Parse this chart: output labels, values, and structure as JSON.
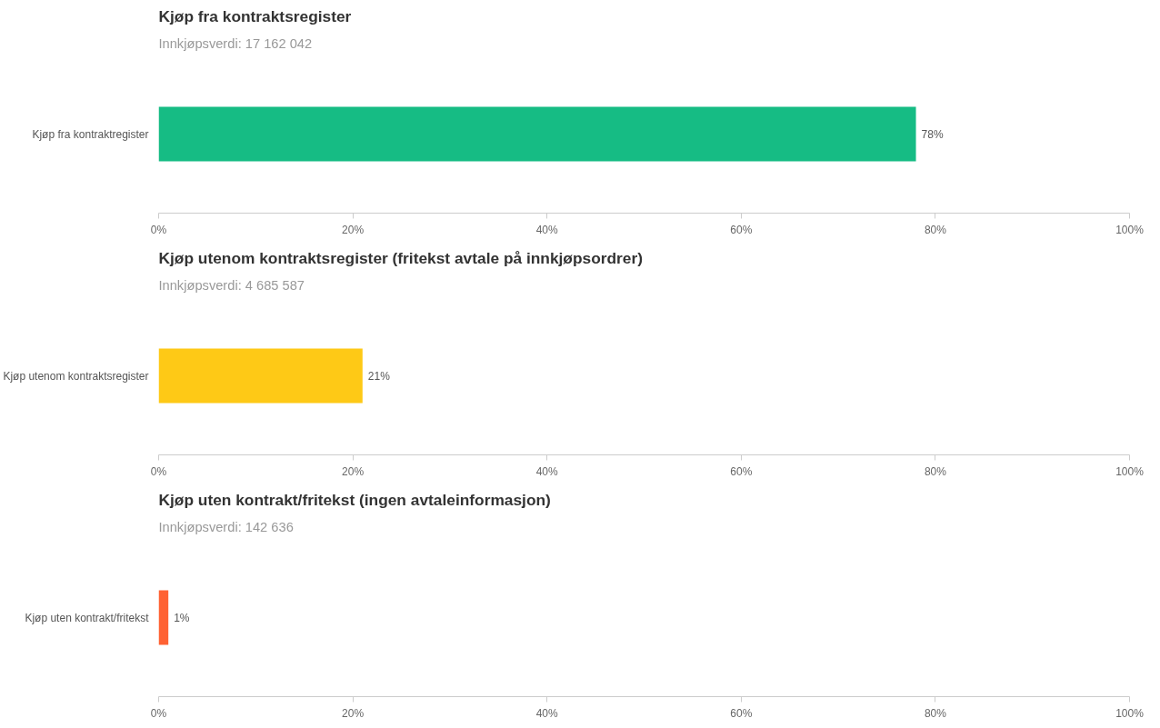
{
  "chart_data": [
    {
      "type": "bar",
      "orientation": "horizontal",
      "title": "Kjøp fra kontraktsregister",
      "subtitle": "Innkjøpsverdi: 17 162 042",
      "categories": [
        "Kjøp fra kontraktregister"
      ],
      "values": [
        78
      ],
      "value_labels": [
        "78%"
      ],
      "color": "#16bc84",
      "xlim": [
        0,
        100
      ],
      "xticks": [
        {
          "value": 0,
          "label": "0%"
        },
        {
          "value": 20,
          "label": "20%"
        },
        {
          "value": 40,
          "label": "40%"
        },
        {
          "value": 60,
          "label": "60%"
        },
        {
          "value": 80,
          "label": "80%"
        },
        {
          "value": 100,
          "label": "100%"
        }
      ],
      "grid": false
    },
    {
      "type": "bar",
      "orientation": "horizontal",
      "title": "Kjøp utenom kontraktsregister (fritekst avtale på innkjøpsordrer)",
      "subtitle": "Innkjøpsverdi: 4 685 587",
      "categories": [
        "Kjøp utenom kontraktsregister"
      ],
      "values": [
        21
      ],
      "value_labels": [
        "21%"
      ],
      "color": "#fec916",
      "xlim": [
        0,
        100
      ],
      "xticks": [
        {
          "value": 0,
          "label": "0%"
        },
        {
          "value": 20,
          "label": "20%"
        },
        {
          "value": 40,
          "label": "40%"
        },
        {
          "value": 60,
          "label": "60%"
        },
        {
          "value": 80,
          "label": "80%"
        },
        {
          "value": 100,
          "label": "100%"
        }
      ],
      "grid": false
    },
    {
      "type": "bar",
      "orientation": "horizontal",
      "title": "Kjøp uten kontrakt/fritekst (ingen avtaleinformasjon)",
      "subtitle": "Innkjøpsverdi: 142 636",
      "categories": [
        "Kjøp uten kontrakt/fritekst"
      ],
      "values": [
        1
      ],
      "value_labels": [
        "1%"
      ],
      "color": "#ff6233",
      "xlim": [
        0,
        100
      ],
      "xticks": [
        {
          "value": 0,
          "label": "0%"
        },
        {
          "value": 20,
          "label": "20%"
        },
        {
          "value": 40,
          "label": "40%"
        },
        {
          "value": 60,
          "label": "60%"
        },
        {
          "value": 80,
          "label": "80%"
        },
        {
          "value": 100,
          "label": "100%"
        }
      ],
      "grid": false
    }
  ]
}
